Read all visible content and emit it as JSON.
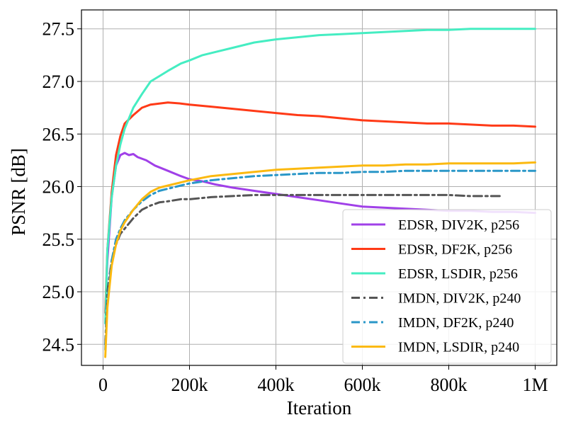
{
  "chart_data": {
    "type": "line",
    "title": "",
    "xlabel": "Iteration",
    "ylabel": "PSNR [dB]",
    "xlim": [
      -50000,
      1050000
    ],
    "ylim": [
      24.3,
      27.68
    ],
    "grid": true,
    "legend_position": "lower-right",
    "x_ticks": [
      {
        "value": 0,
        "label": "0"
      },
      {
        "value": 200000,
        "label": "200k"
      },
      {
        "value": 400000,
        "label": "400k"
      },
      {
        "value": 600000,
        "label": "600k"
      },
      {
        "value": 800000,
        "label": "800k"
      },
      {
        "value": 1000000,
        "label": "1M"
      }
    ],
    "y_ticks": [
      {
        "value": 24.5,
        "label": "24.5"
      },
      {
        "value": 25.0,
        "label": "25.0"
      },
      {
        "value": 25.5,
        "label": "25.5"
      },
      {
        "value": 26.0,
        "label": "26.0"
      },
      {
        "value": 26.5,
        "label": "26.5"
      },
      {
        "value": 27.0,
        "label": "27.0"
      },
      {
        "value": 27.5,
        "label": "27.5"
      }
    ],
    "series": [
      {
        "name": "EDSR, DIV2K, p256",
        "color": "#a040e8",
        "dash": "solid",
        "x": [
          5000,
          10000,
          20000,
          30000,
          40000,
          50000,
          60000,
          70000,
          80000,
          100000,
          120000,
          150000,
          180000,
          200000,
          230000,
          260000,
          300000,
          350000,
          400000,
          450000,
          500000,
          550000,
          600000,
          650000,
          700000,
          750000,
          800000,
          850000,
          900000,
          950000,
          1000000
        ],
        "y": [
          24.8,
          25.3,
          25.9,
          26.2,
          26.3,
          26.32,
          26.3,
          26.31,
          26.28,
          26.25,
          26.2,
          26.15,
          26.1,
          26.07,
          26.05,
          26.02,
          25.99,
          25.96,
          25.93,
          25.9,
          25.87,
          25.84,
          25.81,
          25.8,
          25.79,
          25.78,
          25.77,
          25.77,
          25.76,
          25.76,
          25.75
        ]
      },
      {
        "name": "EDSR, DF2K, p256",
        "color": "#ff3a17",
        "dash": "solid",
        "x": [
          5000,
          10000,
          20000,
          30000,
          40000,
          50000,
          70000,
          90000,
          110000,
          130000,
          150000,
          180000,
          200000,
          250000,
          300000,
          350000,
          400000,
          450000,
          500000,
          550000,
          600000,
          650000,
          700000,
          750000,
          800000,
          850000,
          900000,
          950000,
          1000000
        ],
        "y": [
          24.8,
          25.4,
          25.95,
          26.3,
          26.48,
          26.6,
          26.68,
          26.75,
          26.78,
          26.79,
          26.8,
          26.79,
          26.78,
          26.76,
          26.74,
          26.72,
          26.7,
          26.68,
          26.67,
          26.65,
          26.63,
          26.62,
          26.61,
          26.6,
          26.6,
          26.59,
          26.58,
          26.58,
          26.57
        ]
      },
      {
        "name": "EDSR, LSDIR, p256",
        "color": "#45edc2",
        "dash": "solid",
        "x": [
          5000,
          10000,
          20000,
          30000,
          40000,
          50000,
          70000,
          90000,
          110000,
          130000,
          150000,
          180000,
          200000,
          230000,
          260000,
          300000,
          350000,
          400000,
          450000,
          500000,
          550000,
          600000,
          650000,
          700000,
          750000,
          800000,
          850000,
          900000,
          950000,
          1000000
        ],
        "y": [
          24.7,
          25.4,
          25.9,
          26.2,
          26.4,
          26.55,
          26.75,
          26.88,
          27.0,
          27.05,
          27.1,
          27.17,
          27.2,
          27.25,
          27.28,
          27.32,
          27.37,
          27.4,
          27.42,
          27.44,
          27.45,
          27.46,
          27.47,
          27.48,
          27.49,
          27.49,
          27.5,
          27.5,
          27.5,
          27.5
        ]
      },
      {
        "name": "IMDN, DIV2K, p240",
        "color": "#555555",
        "dash": "dashdot",
        "x": [
          5000,
          10000,
          20000,
          30000,
          40000,
          50000,
          70000,
          90000,
          110000,
          130000,
          150000,
          180000,
          200000,
          250000,
          300000,
          350000,
          400000,
          450000,
          500000,
          550000,
          600000,
          650000,
          700000,
          750000,
          800000,
          850000,
          900000,
          920000
        ],
        "y": [
          24.5,
          25.0,
          25.3,
          25.45,
          25.55,
          25.6,
          25.7,
          25.78,
          25.82,
          25.85,
          25.86,
          25.88,
          25.88,
          25.9,
          25.91,
          25.92,
          25.92,
          25.92,
          25.92,
          25.92,
          25.92,
          25.92,
          25.92,
          25.92,
          25.92,
          25.91,
          25.91,
          25.91
        ]
      },
      {
        "name": "IMDN, DF2K, p240",
        "color": "#2a97c8",
        "dash": "dashdot",
        "x": [
          5000,
          10000,
          20000,
          30000,
          40000,
          50000,
          70000,
          90000,
          110000,
          130000,
          150000,
          180000,
          200000,
          250000,
          300000,
          350000,
          400000,
          450000,
          500000,
          550000,
          600000,
          650000,
          700000,
          750000,
          800000,
          850000,
          900000,
          950000,
          1000000
        ],
        "y": [
          24.45,
          24.9,
          25.3,
          25.5,
          25.6,
          25.68,
          25.78,
          25.86,
          25.92,
          25.96,
          25.98,
          26.01,
          26.03,
          26.06,
          26.08,
          26.1,
          26.11,
          26.12,
          26.13,
          26.13,
          26.14,
          26.14,
          26.15,
          26.15,
          26.15,
          26.15,
          26.15,
          26.15,
          26.15
        ]
      },
      {
        "name": "IMDN, LSDIR, p240",
        "color": "#fbb910",
        "dash": "solid",
        "x": [
          5000,
          10000,
          20000,
          30000,
          40000,
          50000,
          70000,
          90000,
          110000,
          130000,
          150000,
          180000,
          200000,
          250000,
          300000,
          350000,
          400000,
          450000,
          500000,
          550000,
          600000,
          650000,
          700000,
          750000,
          800000,
          850000,
          900000,
          950000,
          1000000
        ],
        "y": [
          24.38,
          24.85,
          25.25,
          25.45,
          25.58,
          25.66,
          25.78,
          25.88,
          25.95,
          25.99,
          26.01,
          26.04,
          26.06,
          26.1,
          26.12,
          26.14,
          26.16,
          26.17,
          26.18,
          26.19,
          26.2,
          26.2,
          26.21,
          26.21,
          26.22,
          26.22,
          26.22,
          26.22,
          26.23
        ]
      }
    ]
  }
}
